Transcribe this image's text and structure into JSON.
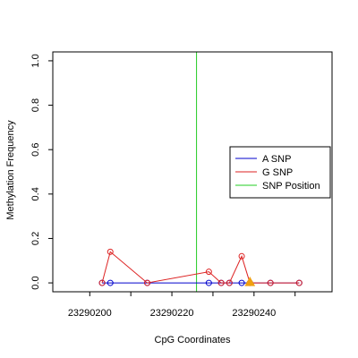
{
  "chart_data": {
    "type": "scatter",
    "xlabel": "CpG Coordinates",
    "ylabel": "Methylation Frequency",
    "xlim": [
      23290191,
      23290259
    ],
    "ylim": [
      -0.04,
      1.04
    ],
    "x_ticks": [
      23290200,
      23290220,
      23290240
    ],
    "y_ticks": [
      "0.0",
      "0.2",
      "0.4",
      "0.6",
      "0.8",
      "1.0"
    ],
    "y_tick_values": [
      0,
      0.2,
      0.4,
      0.6,
      0.8,
      1.0
    ],
    "legend_position": "right",
    "series": [
      {
        "name": "A SNP",
        "color": "#0000cc",
        "x": [
          23290203,
          23290205,
          23290214,
          23290229,
          23290232,
          23290234,
          23290237,
          23290239,
          23290244,
          23290251
        ],
        "y": [
          0.0,
          0.0,
          0.0,
          0.0,
          0.0,
          0.0,
          0.0,
          0.0,
          0.0,
          0.0
        ]
      },
      {
        "name": "G SNP",
        "color": "#dd2222",
        "x": [
          23290203,
          23290205,
          23290214,
          23290229,
          23290232,
          23290234,
          23290237,
          23290239,
          23290244,
          23290251
        ],
        "y": [
          0.0,
          0.14,
          0.0,
          0.05,
          0.0,
          0.0,
          0.12,
          0.0,
          0.0,
          0.0
        ]
      }
    ],
    "snp_position": {
      "name": "SNP Position",
      "x": 23290226,
      "color": "#22cc22"
    },
    "marker": {
      "x": 23290239,
      "y": 0.0,
      "color": "#f0a010",
      "shape": "triangle"
    }
  }
}
